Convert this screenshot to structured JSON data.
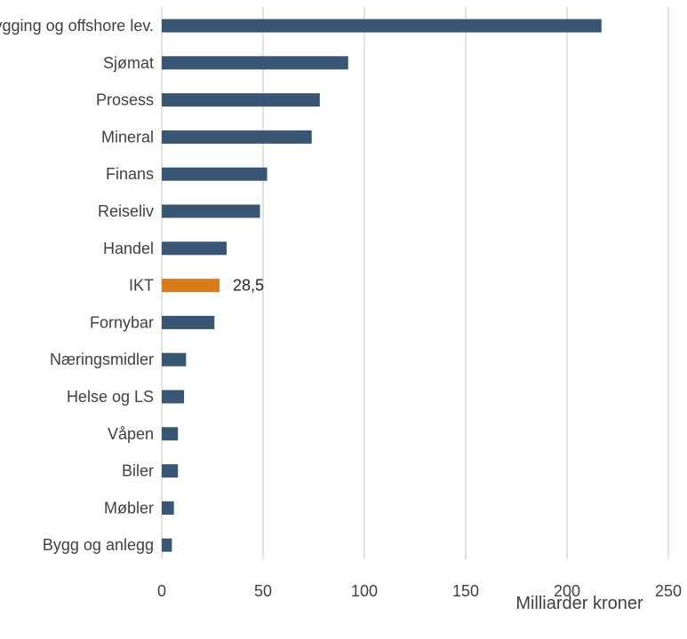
{
  "chart_data": {
    "type": "bar",
    "orientation": "horizontal",
    "categories": [
      "Olje, gass, skipsbygging og offshore lev.",
      "Sjømat",
      "Prosess",
      "Mineral",
      "Finans",
      "Reiseliv",
      "Handel",
      "IKT",
      "Fornybar",
      "Næringsmidler",
      "Helse og LS",
      "Våpen",
      "Biler",
      "Møbler",
      "Bygg og anlegg"
    ],
    "values": [
      217,
      92,
      78,
      74,
      52,
      48.5,
      32,
      28.5,
      26,
      12,
      11,
      8,
      8,
      6,
      5
    ],
    "highlight": {
      "category": "IKT",
      "label": "28,5"
    },
    "xlabel": "Milliarder kroner",
    "xlim": [
      0,
      250
    ],
    "xticks": [
      "0",
      "50",
      "100",
      "150",
      "200",
      "250"
    ],
    "grid": true,
    "legend": "none",
    "colors": {
      "bar": "#3A5675",
      "highlight": "#D87C1A",
      "grid": "#D9D9D9",
      "text": "#404040"
    }
  }
}
